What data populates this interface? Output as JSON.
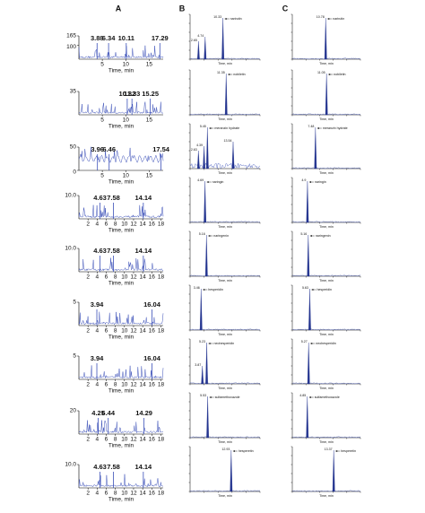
{
  "panels": [
    {
      "label": "A",
      "x_title": "Time, min",
      "rows": [
        {
          "ylim": [
            0,
            165
          ],
          "yticks": [
            165,
            100
          ],
          "xlim": [
            0,
            18
          ],
          "xticks": [
            5,
            10,
            15
          ],
          "peaks": [
            3.88,
            6.34,
            10.11,
            17.29
          ]
        },
        {
          "ylim": [
            0,
            35
          ],
          "yticks": [
            35
          ],
          "xlim": [
            0,
            18
          ],
          "xticks": [
            5,
            10,
            15
          ],
          "peaks": [
            10.32,
            11.33,
            15.25
          ]
        },
        {
          "ylim": [
            0,
            50
          ],
          "yticks": [
            50,
            0
          ],
          "xlim": [
            0,
            18
          ],
          "xticks": [
            5,
            10,
            15
          ],
          "peaks": [
            3.96,
            6.46,
            17.54
          ]
        },
        {
          "ylim": [
            0,
            10
          ],
          "yticks": [
            {
              "value": 10,
              "label": "10.0"
            }
          ],
          "xlim": [
            0,
            18.5
          ],
          "xticks": [
            2,
            4,
            6,
            8,
            10,
            12,
            14,
            16,
            18
          ],
          "peaks": [
            4.63,
            7.58,
            14.14
          ]
        },
        {
          "ylim": [
            0,
            10
          ],
          "yticks": [
            {
              "value": 10,
              "label": "10.0"
            }
          ],
          "xlim": [
            0,
            18.5
          ],
          "xticks": [
            2,
            4,
            6,
            8,
            10,
            12,
            14,
            16,
            18
          ],
          "peaks": [
            4.63,
            7.58,
            14.14
          ]
        },
        {
          "ylim": [
            0,
            5
          ],
          "yticks": [
            5
          ],
          "xlim": [
            0,
            18.5
          ],
          "xticks": [
            2,
            4,
            6,
            8,
            10,
            12,
            14,
            16,
            18
          ],
          "peaks": [
            3.94,
            16.04
          ]
        },
        {
          "ylim": [
            0,
            5
          ],
          "yticks": [
            5
          ],
          "xlim": [
            0,
            18.5
          ],
          "xticks": [
            2,
            4,
            6,
            8,
            10,
            12,
            14,
            16,
            18
          ],
          "peaks": [
            3.94,
            16.04
          ]
        },
        {
          "ylim": [
            0,
            20
          ],
          "yticks": [
            20
          ],
          "xlim": [
            0,
            18.5
          ],
          "xticks": [
            2,
            4,
            6,
            8,
            10,
            12,
            14,
            16,
            18
          ],
          "peaks": [
            4.25,
            6.44,
            14.29
          ]
        },
        {
          "ylim": [
            0,
            10
          ],
          "yticks": [
            {
              "value": 10,
              "label": "10.0"
            }
          ],
          "xlim": [
            0,
            18.5
          ],
          "xticks": [
            2,
            4,
            6,
            8,
            10,
            12,
            14,
            16,
            18
          ],
          "peaks": [
            4.63,
            7.58,
            14.14
          ]
        }
      ]
    },
    {
      "label": "B",
      "x_title": "Time, min",
      "xlim": [
        0,
        22
      ],
      "rows": [
        {
          "name": "narirutin",
          "peaks": [
            10.33,
            2.65,
            4.74
          ]
        },
        {
          "name": "nobiletin",
          "peaks": [
            11.35
          ]
        },
        {
          "name": "meranzin hydrate",
          "peaks": [
            5.45,
            2.63,
            4.39,
            13.54
          ]
        },
        {
          "name": "naringin",
          "peaks": [
            4.69
          ]
        },
        {
          "name": "naringenin",
          "peaks": [
            5.16
          ]
        },
        {
          "name": "hesperidin",
          "peaks": [
            3.46
          ]
        },
        {
          "name": "neohesperidin",
          "peaks": [
            5.23,
            3.87
          ]
        },
        {
          "name": "sulfamethoxazole",
          "peaks": [
            5.53
          ]
        },
        {
          "name": "hesperetin",
          "peaks": [
            12.93
          ]
        }
      ]
    },
    {
      "label": "C",
      "x_title": "Time, min",
      "xlim": [
        0,
        22
      ],
      "rows": [
        {
          "name": "narirutin",
          "peaks": [
            10.78
          ]
        },
        {
          "name": "nobiletin",
          "peaks": [
            11.05
          ]
        },
        {
          "name": "meranzin hydrate",
          "peaks": [
            7.48
          ]
        },
        {
          "name": "naringin",
          "peaks": [
            4.9
          ]
        },
        {
          "name": "naringenin",
          "peaks": [
            5.16
          ]
        },
        {
          "name": "hesperidin",
          "peaks": [
            5.63
          ]
        },
        {
          "name": "neohesperidin",
          "peaks": [
            5.27
          ]
        },
        {
          "name": "sulfamethoxazole",
          "peaks": [
            4.85
          ]
        },
        {
          "name": "hesperetin",
          "peaks": [
            13.37
          ]
        }
      ]
    }
  ]
}
